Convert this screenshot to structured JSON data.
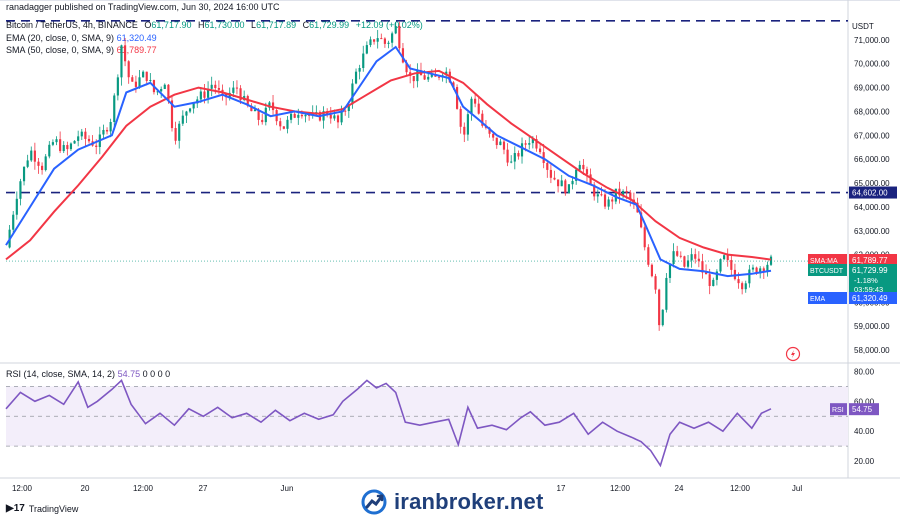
{
  "header": {
    "symbol_line": "Bitcoin / TetherUS, 4h, BINANCE",
    "ohlc": [
      {
        "k": "O",
        "v": "61,717.90"
      },
      {
        "k": "H",
        "v": "61,730.00"
      },
      {
        "k": "L",
        "v": "61,717.89"
      },
      {
        "k": "C",
        "v": "61,729.99"
      }
    ],
    "change": "+12.09 (+0.02%)",
    "publisher": "ranadagger published on TradingView.com, Jun 30, 2024 16:00 UTC",
    "ema_label": "EMA (20, close, 0, SMA, 9)",
    "ema_value": "61,320.49",
    "sma_label": "SMA (50, close, 0, SMA, 9)",
    "sma_value": "61,789.77",
    "rsi_label": "RSI (14, close, SMA, 14, 2)",
    "rsi_value": "54.75",
    "rsi_extra": "0 0 0 0"
  },
  "currency": "USDT",
  "brand": "iranbroker.net",
  "tv_logo": "TradingView",
  "colors": {
    "up": "#089981",
    "down": "#f23645",
    "ema": "#2962ff",
    "sma": "#f23645",
    "rsi": "#7e57c2",
    "rsi_band": "#f3eefa",
    "hline": "#1a237e",
    "brand": "#1f3f7a"
  },
  "chart_data": [
    {
      "type": "candlestick",
      "title": "Bitcoin / TetherUS, 4h, BINANCE",
      "ylim": [
        57500,
        72000
      ],
      "y_ticks": [
        "71,000.00",
        "70,000.00",
        "69,000.00",
        "68,000.00",
        "67,000.00",
        "66,000.00",
        "65,000.00",
        "64,000.00",
        "63,000.00",
        "62,000.00",
        "61,000.00",
        "60,000.00",
        "59,000.00",
        "58,000.00"
      ],
      "x_ticks": [
        "12:00",
        "20",
        "12:00",
        "27",
        "Jun",
        "17",
        "12:00",
        "24",
        "12:00",
        "Jul"
      ],
      "horizontal_levels": [
        {
          "value": 71800,
          "label": ""
        },
        {
          "value": 64602,
          "label": "64,602.00"
        }
      ],
      "price_tags": [
        {
          "label": "SMA:MA",
          "value": "61,789.77",
          "color": "#f23645"
        },
        {
          "label": "BTCUSDT",
          "value": "61,729.99",
          "sub": [
            "-1.18%",
            "03:59:43"
          ],
          "color": "#089981"
        },
        {
          "label": "EMA",
          "value": "61,320.49",
          "color": "#2962ff"
        }
      ],
      "close_path": [
        [
          0,
          62300
        ],
        [
          5,
          64800
        ],
        [
          10,
          66400
        ],
        [
          15,
          65700
        ],
        [
          20,
          66800
        ],
        [
          25,
          66300
        ],
        [
          30,
          67000
        ],
        [
          38,
          66600
        ],
        [
          44,
          67800
        ],
        [
          48,
          70800
        ],
        [
          52,
          69000
        ],
        [
          58,
          69600
        ],
        [
          62,
          68700
        ],
        [
          66,
          69300
        ],
        [
          70,
          66900
        ],
        [
          76,
          68300
        ],
        [
          82,
          68700
        ],
        [
          86,
          69200
        ],
        [
          90,
          68500
        ],
        [
          96,
          69000
        ],
        [
          100,
          68200
        ],
        [
          106,
          67600
        ],
        [
          110,
          68300
        ],
        [
          115,
          67300
        ],
        [
          122,
          68100
        ],
        [
          128,
          67700
        ],
        [
          134,
          68000
        ],
        [
          138,
          67500
        ],
        [
          142,
          68300
        ],
        [
          146,
          69800
        ],
        [
          150,
          70600
        ],
        [
          154,
          71200
        ],
        [
          158,
          70800
        ],
        [
          162,
          71500
        ],
        [
          165,
          70300
        ],
        [
          168,
          69400
        ],
        [
          172,
          69500
        ],
        [
          178,
          69300
        ],
        [
          182,
          69800
        ],
        [
          186,
          69200
        ],
        [
          190,
          66800
        ],
        [
          194,
          68800
        ],
        [
          198,
          67400
        ],
        [
          202,
          66800
        ],
        [
          206,
          66600
        ],
        [
          210,
          65800
        ],
        [
          214,
          66400
        ],
        [
          218,
          66900
        ],
        [
          222,
          66500
        ],
        [
          226,
          65400
        ],
        [
          230,
          65000
        ],
        [
          234,
          64700
        ],
        [
          238,
          66100
        ],
        [
          242,
          65000
        ],
        [
          246,
          64400
        ],
        [
          250,
          64100
        ],
        [
          254,
          64600
        ],
        [
          258,
          64500
        ],
        [
          262,
          63900
        ],
        [
          266,
          62100
        ],
        [
          270,
          60700
        ],
        [
          272,
          58600
        ],
        [
          274,
          61100
        ],
        [
          278,
          62100
        ],
        [
          282,
          61500
        ],
        [
          286,
          62000
        ],
        [
          290,
          61200
        ],
        [
          294,
          60700
        ],
        [
          298,
          61900
        ],
        [
          302,
          61300
        ],
        [
          306,
          60800
        ],
        [
          310,
          61300
        ],
        [
          314,
          61500
        ],
        [
          318,
          61730
        ]
      ],
      "ema20_path": [
        [
          0,
          62400
        ],
        [
          10,
          64000
        ],
        [
          20,
          65600
        ],
        [
          30,
          66400
        ],
        [
          44,
          67000
        ],
        [
          50,
          68800
        ],
        [
          60,
          69200
        ],
        [
          70,
          68200
        ],
        [
          80,
          68400
        ],
        [
          90,
          68700
        ],
        [
          100,
          68300
        ],
        [
          110,
          67800
        ],
        [
          120,
          68000
        ],
        [
          130,
          67800
        ],
        [
          140,
          68000
        ],
        [
          146,
          68900
        ],
        [
          154,
          70100
        ],
        [
          162,
          70700
        ],
        [
          168,
          69800
        ],
        [
          176,
          69600
        ],
        [
          184,
          69400
        ],
        [
          190,
          68200
        ],
        [
          196,
          67700
        ],
        [
          204,
          67000
        ],
        [
          214,
          66500
        ],
        [
          224,
          66000
        ],
        [
          234,
          65300
        ],
        [
          244,
          64900
        ],
        [
          254,
          64400
        ],
        [
          262,
          64100
        ],
        [
          266,
          63200
        ],
        [
          272,
          61800
        ],
        [
          280,
          61400
        ],
        [
          290,
          61300
        ],
        [
          300,
          61100
        ],
        [
          310,
          61200
        ],
        [
          318,
          61320
        ]
      ],
      "sma50_path": [
        [
          0,
          61800
        ],
        [
          10,
          62600
        ],
        [
          20,
          63800
        ],
        [
          30,
          64900
        ],
        [
          40,
          66100
        ],
        [
          50,
          67400
        ],
        [
          60,
          68200
        ],
        [
          70,
          68700
        ],
        [
          80,
          69000
        ],
        [
          90,
          68800
        ],
        [
          100,
          68500
        ],
        [
          110,
          68200
        ],
        [
          120,
          68000
        ],
        [
          130,
          67900
        ],
        [
          140,
          68100
        ],
        [
          150,
          68700
        ],
        [
          160,
          69300
        ],
        [
          170,
          69600
        ],
        [
          180,
          69700
        ],
        [
          190,
          69200
        ],
        [
          200,
          68300
        ],
        [
          210,
          67500
        ],
        [
          220,
          66800
        ],
        [
          230,
          66100
        ],
        [
          240,
          65400
        ],
        [
          250,
          64800
        ],
        [
          260,
          64300
        ],
        [
          270,
          63400
        ],
        [
          280,
          62700
        ],
        [
          290,
          62300
        ],
        [
          300,
          62000
        ],
        [
          310,
          61900
        ],
        [
          318,
          61790
        ]
      ]
    },
    {
      "type": "line",
      "title": "RSI (14, close, SMA, 14, 2)",
      "ylim": [
        10,
        85
      ],
      "y_ticks": [
        "80.00",
        "60.00",
        "40.00",
        "20.00"
      ],
      "band": [
        30,
        70
      ],
      "mid_level": 50,
      "last_value": "54.75",
      "path": [
        [
          0,
          55
        ],
        [
          6,
          66
        ],
        [
          12,
          60
        ],
        [
          18,
          64
        ],
        [
          24,
          58
        ],
        [
          30,
          73
        ],
        [
          34,
          56
        ],
        [
          38,
          60
        ],
        [
          44,
          68
        ],
        [
          48,
          74
        ],
        [
          52,
          58
        ],
        [
          58,
          45
        ],
        [
          64,
          52
        ],
        [
          70,
          44
        ],
        [
          76,
          55
        ],
        [
          82,
          50
        ],
        [
          88,
          56
        ],
        [
          94,
          49
        ],
        [
          100,
          52
        ],
        [
          106,
          46
        ],
        [
          112,
          54
        ],
        [
          118,
          47
        ],
        [
          124,
          52
        ],
        [
          130,
          48
        ],
        [
          136,
          51
        ],
        [
          140,
          60
        ],
        [
          146,
          68
        ],
        [
          150,
          74
        ],
        [
          154,
          69
        ],
        [
          158,
          72
        ],
        [
          162,
          66
        ],
        [
          166,
          46
        ],
        [
          172,
          44
        ],
        [
          178,
          46
        ],
        [
          184,
          48
        ],
        [
          188,
          31
        ],
        [
          192,
          56
        ],
        [
          196,
          42
        ],
        [
          202,
          44
        ],
        [
          208,
          41
        ],
        [
          214,
          49
        ],
        [
          218,
          53
        ],
        [
          224,
          44
        ],
        [
          230,
          46
        ],
        [
          236,
          52
        ],
        [
          242,
          38
        ],
        [
          248,
          46
        ],
        [
          254,
          40
        ],
        [
          260,
          36
        ],
        [
          264,
          33
        ],
        [
          268,
          27
        ],
        [
          272,
          17
        ],
        [
          276,
          38
        ],
        [
          280,
          46
        ],
        [
          286,
          42
        ],
        [
          292,
          46
        ],
        [
          298,
          40
        ],
        [
          304,
          52
        ],
        [
          310,
          42
        ],
        [
          314,
          52
        ],
        [
          318,
          55
        ]
      ]
    }
  ]
}
